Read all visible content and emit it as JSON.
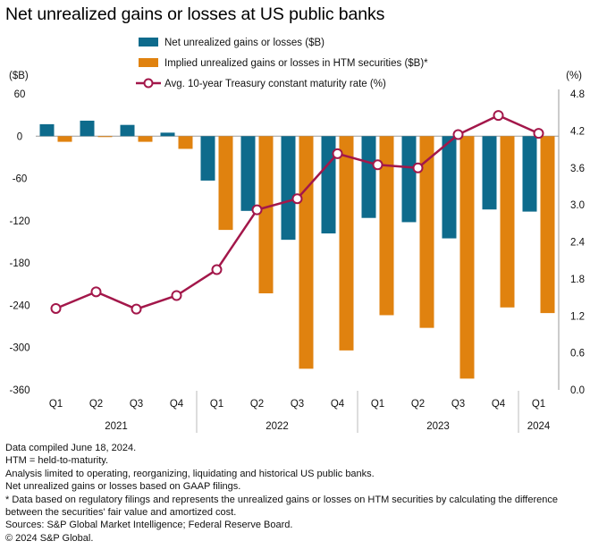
{
  "title": "Net unrealized gains or losses at US public banks",
  "colors": {
    "net": "#0e6b8c",
    "htm": "#e0820f",
    "rate": "#a3174a",
    "axis": "#999999",
    "text": "#111111"
  },
  "notes": [
    "Data compiled June 18, 2024.",
    "HTM = held-to-maturity.",
    "Analysis limited to operating, reorganizing, liquidating and historical US public banks.",
    "Net unrealized gains or losses based on GAAP filings.",
    "* Data based on regulatory filings and represents the unrealized gains or losses on HTM securities by calculating the difference between the securities' fair value and amortized cost.",
    "Sources: S&P Global Market Intelligence; Federal Reserve Board.",
    "© 2024 S&P Global."
  ],
  "chart_data": {
    "type": "bar",
    "categories": [
      "Q1",
      "Q2",
      "Q3",
      "Q4",
      "Q1",
      "Q2",
      "Q3",
      "Q4",
      "Q1",
      "Q2",
      "Q3",
      "Q4",
      "Q1"
    ],
    "year_groups": [
      {
        "label": "2021",
        "start": 0,
        "count": 4
      },
      {
        "label": "2022",
        "start": 4,
        "count": 4
      },
      {
        "label": "2023",
        "start": 8,
        "count": 4
      },
      {
        "label": "2024",
        "start": 12,
        "count": 1
      }
    ],
    "series": [
      {
        "name": "Net unrealized gains or losses ($B)",
        "type": "bar",
        "axis": "left",
        "values": [
          17,
          22,
          16,
          5,
          -63,
          -106,
          -147,
          -138,
          -116,
          -122,
          -145,
          -104,
          -107
        ]
      },
      {
        "name": "Implied unrealized gains or losses in HTM securities ($B)*",
        "type": "bar",
        "axis": "left",
        "values": [
          -8,
          -1,
          -8,
          -18,
          -133,
          -223,
          -330,
          -304,
          -254,
          -272,
          -344,
          -243,
          -251
        ]
      },
      {
        "name": "Avg. 10-year Treasury constant maturity rate (%)",
        "type": "line",
        "axis": "right",
        "values": [
          1.32,
          1.59,
          1.31,
          1.53,
          1.95,
          2.92,
          3.1,
          3.83,
          3.65,
          3.6,
          4.14,
          4.45,
          4.16
        ]
      }
    ],
    "left_axis": {
      "unit_label": "($B)",
      "ticks": [
        "60",
        "0",
        "-60",
        "-120",
        "-180",
        "-240",
        "-300",
        "-360"
      ],
      "min": -360,
      "max": 60
    },
    "right_axis": {
      "unit_label": "(%)",
      "ticks": [
        "4.8",
        "4.2",
        "3.6",
        "3.0",
        "2.4",
        "1.8",
        "1.2",
        "0.6",
        "0.0"
      ],
      "min": 0,
      "max": 4.8
    },
    "legend_position": "top"
  }
}
